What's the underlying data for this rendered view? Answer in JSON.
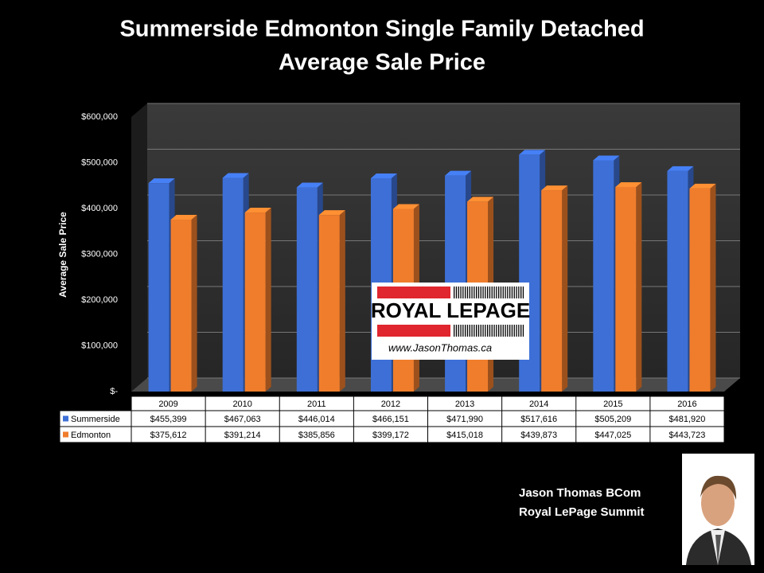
{
  "chart_data": {
    "type": "bar",
    "title": "Summerside Edmonton Single Family Detached",
    "subtitle": "Average Sale Price",
    "y_label": "Average Sale Price",
    "categories": [
      "2009",
      "2010",
      "2011",
      "2012",
      "2013",
      "2014",
      "2015",
      "2016"
    ],
    "series": [
      {
        "name": "Summerside",
        "color": "#3d6fd6",
        "values": [
          455399,
          467063,
          446014,
          466151,
          471990,
          517616,
          505209,
          481920
        ],
        "value_labels": [
          "$455,399",
          "$467,063",
          "$446,014",
          "$466,151",
          "$471,990",
          "$517,616",
          "$505,209",
          "$481,920"
        ]
      },
      {
        "name": "Edmonton",
        "color": "#f07d2c",
        "values": [
          375612,
          391214,
          385856,
          399172,
          415018,
          439873,
          447025,
          443723
        ],
        "value_labels": [
          "$375,612",
          "$391,214",
          "$385,856",
          "$399,172",
          "$415,018",
          "$439,873",
          "$447,025",
          "$443,723"
        ]
      }
    ],
    "ylim": [
      0,
      600000
    ],
    "yticks": [
      {
        "value": 0,
        "label": "$-"
      },
      {
        "value": 100000,
        "label": "$100,000"
      },
      {
        "value": 200000,
        "label": "$200,000"
      },
      {
        "value": 300000,
        "label": "$300,000"
      },
      {
        "value": 400000,
        "label": "$400,000"
      },
      {
        "value": 500000,
        "label": "$500,000"
      },
      {
        "value": 600000,
        "label": "$600,000"
      }
    ],
    "grid": true
  },
  "branding": {
    "logo": "ROYAL LEPAGE",
    "website": "www.JasonThomas.ca",
    "agent_name": "Jason Thomas BCom",
    "agent_office": "Royal LePage Summit"
  }
}
